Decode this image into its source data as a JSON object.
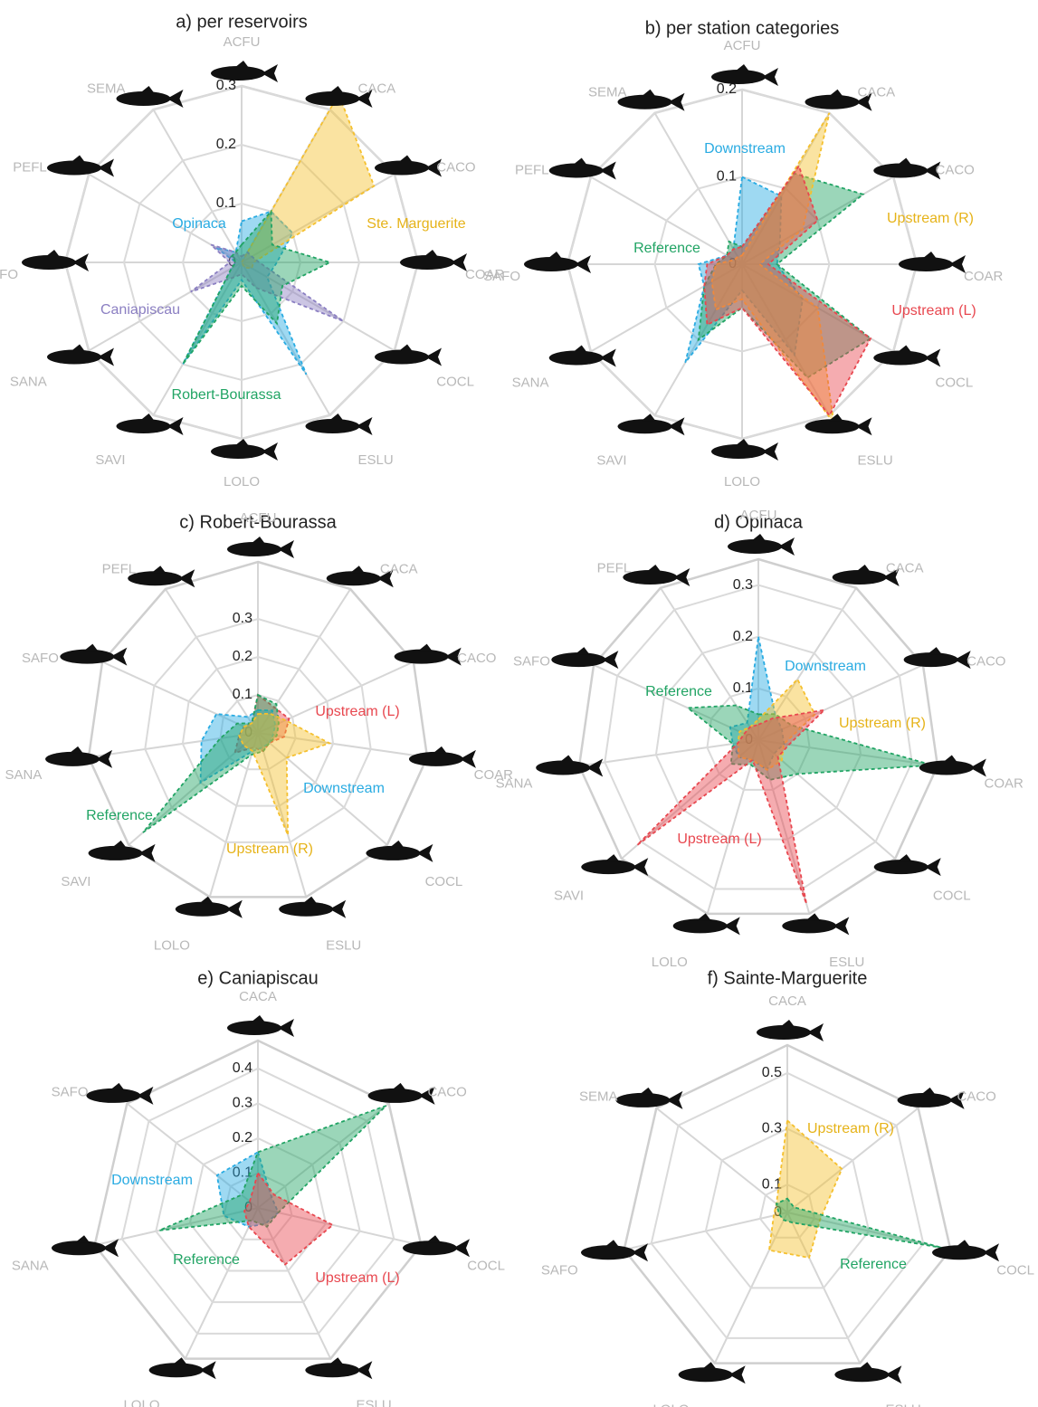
{
  "chart_data": [
    {
      "type": "radar",
      "title": "a) per reservoirs",
      "categories": [
        "ACFU",
        "CACA",
        "CACO",
        "COAR",
        "COCL",
        "ESLU",
        "LOLO",
        "SAVI",
        "SANA",
        "SAFO",
        "PEFL",
        "SEMA"
      ],
      "ylim": [
        0,
        0.3
      ],
      "yticks": [
        0,
        0.1,
        0.2,
        0.3
      ],
      "series": [
        {
          "name": "Opinaca",
          "color": "#29abe2",
          "values": [
            0.07,
            0.1,
            0.1,
            0.06,
            0.05,
            0.22,
            0.03,
            0.2,
            0.02,
            0.01,
            0.05,
            0.02
          ]
        },
        {
          "name": "Ste. Marguerite",
          "color": "#f5c02e",
          "values": [
            0,
            0.33,
            0.26,
            0.02,
            0.02,
            0.01,
            0,
            0,
            0,
            0,
            0,
            0
          ]
        },
        {
          "name": "Caniapiscau",
          "color": "#8b7fc2",
          "values": [
            0.01,
            0.02,
            0.02,
            0.03,
            0.2,
            0.05,
            0.02,
            0.03,
            0.1,
            0.02,
            0.06,
            0.02
          ]
        },
        {
          "name": "Robert-Bourassa",
          "color": "#21a464",
          "values": [
            0.03,
            0.1,
            0.06,
            0.15,
            0.08,
            0.12,
            0.04,
            0.2,
            0.02,
            0.01,
            0.02,
            0.02
          ]
        }
      ]
    },
    {
      "type": "radar",
      "title": "b) per station categories",
      "categories": [
        "ACFU",
        "CACA",
        "CACO",
        "COAR",
        "COCL",
        "ESLU",
        "LOLO",
        "SAVI",
        "SANA",
        "SAFO",
        "PEFL",
        "SEMA"
      ],
      "ylim": [
        0,
        0.2
      ],
      "yticks": [
        0,
        0.1,
        0.2
      ],
      "series": [
        {
          "name": "Downstream",
          "color": "#29abe2",
          "values": [
            0.1,
            0.09,
            0.05,
            0.04,
            0.08,
            0.12,
            0.03,
            0.13,
            0.05,
            0.05,
            0.02,
            0.02
          ]
        },
        {
          "name": "Reference",
          "color": "#21a464",
          "values": [
            0.02,
            0.12,
            0.16,
            0.04,
            0.17,
            0.15,
            0.05,
            0.1,
            0.05,
            0.03,
            0.02,
            0.03
          ]
        },
        {
          "name": "Upstream (R)",
          "color": "#f5c02e",
          "values": [
            0.01,
            0.2,
            0.08,
            0.02,
            0.1,
            0.21,
            0.04,
            0.06,
            0.04,
            0.03,
            0.01,
            0.01
          ]
        },
        {
          "name": "Upstream (L)",
          "color": "#e8474f",
          "values": [
            0.02,
            0.13,
            0.1,
            0.03,
            0.17,
            0.2,
            0.05,
            0.08,
            0.05,
            0.04,
            0.02,
            0.02
          ]
        }
      ]
    },
    {
      "type": "radar",
      "title": "c) Robert-Bourassa",
      "categories": [
        "ACFU",
        "CACA",
        "CACO",
        "COAR",
        "COCL",
        "ESLU",
        "LOLO",
        "SAVI",
        "SANA",
        "SAFO",
        "PEFL"
      ],
      "ylim": [
        0,
        0.45
      ],
      "yticks": [
        0,
        0.1,
        0.2,
        0.3
      ],
      "series": [
        {
          "name": "Upstream (L)",
          "color": "#e8474f",
          "values": [
            0.1,
            0.08,
            0.09,
            0.07,
            0.04,
            0.05,
            0.04,
            0.08,
            0.05,
            0.04,
            0.03
          ]
        },
        {
          "name": "Downstream",
          "color": "#29abe2",
          "values": [
            0.06,
            0.07,
            0.05,
            0.04,
            0.04,
            0.04,
            0.05,
            0.2,
            0.15,
            0.12,
            0.05
          ]
        },
        {
          "name": "Reference",
          "color": "#21a464",
          "values": [
            0.1,
            0.09,
            0.06,
            0.05,
            0.04,
            0.05,
            0.06,
            0.4,
            0.1,
            0.06,
            0.03
          ]
        },
        {
          "name": "Upstream (R)",
          "color": "#f5c02e",
          "values": [
            0.05,
            0.06,
            0.08,
            0.19,
            0.1,
            0.28,
            0.05,
            0.05,
            0.05,
            0.04,
            0.03
          ]
        }
      ]
    },
    {
      "type": "radar",
      "title": "d) Opinaca",
      "categories": [
        "ACFU",
        "CACA",
        "CACO",
        "COAR",
        "COCL",
        "ESLU",
        "LOLO",
        "SAVI",
        "SANA",
        "SAFO",
        "PEFL"
      ],
      "ylim": [
        0,
        0.35
      ],
      "yticks": [
        0,
        0.1,
        0.2,
        0.3
      ],
      "series": [
        {
          "name": "Downstream",
          "color": "#29abe2",
          "values": [
            0.2,
            0.06,
            0.05,
            0.05,
            0.04,
            0.06,
            0.04,
            0.05,
            0.05,
            0.06,
            0.04
          ]
        },
        {
          "name": "Reference",
          "color": "#21a464",
          "values": [
            0.05,
            0.06,
            0.07,
            0.34,
            0.1,
            0.08,
            0.05,
            0.07,
            0.05,
            0.15,
            0.08
          ]
        },
        {
          "name": "Upstream (R)",
          "color": "#f5c02e",
          "values": [
            0.04,
            0.14,
            0.12,
            0.05,
            0.06,
            0.06,
            0.04,
            0.05,
            0.04,
            0.04,
            0.03
          ]
        },
        {
          "name": "Upstream (L)",
          "color": "#e8474f",
          "values": [
            0.03,
            0.05,
            0.14,
            0.06,
            0.05,
            0.33,
            0.04,
            0.31,
            0.04,
            0.03,
            0.03
          ]
        }
      ]
    },
    {
      "type": "radar",
      "title": "e) Caniapiscau",
      "categories": [
        "CACA",
        "CACO",
        "COCL",
        "ESLU",
        "LOLO",
        "SANA",
        "SAFO"
      ],
      "ylim": [
        0,
        0.48
      ],
      "yticks": [
        0,
        0.1,
        0.2,
        0.3,
        0.4
      ],
      "series": [
        {
          "name": "Downstream",
          "color": "#29abe2",
          "values": [
            0.16,
            0.05,
            0.06,
            0.05,
            0.06,
            0.1,
            0.15
          ]
        },
        {
          "name": "Reference",
          "color": "#21a464",
          "values": [
            0.16,
            0.47,
            0.06,
            0.06,
            0.04,
            0.29,
            0.06
          ]
        },
        {
          "name": "Upstream (L)",
          "color": "#e8474f",
          "values": [
            0.1,
            0.06,
            0.22,
            0.18,
            0.06,
            0.04,
            0.03
          ]
        }
      ]
    },
    {
      "type": "radar",
      "title": "f) Sainte-Marguerite",
      "categories": [
        "CACA",
        "CACO",
        "COCL",
        "ESLU",
        "LOLO",
        "SAFO",
        "SEMA"
      ],
      "ylim": [
        0,
        0.6
      ],
      "yticks": [
        0,
        0.1,
        0.3,
        0.5
      ],
      "series": [
        {
          "name": "Upstream (R)",
          "color": "#f5c02e",
          "values": [
            0.33,
            0.25,
            0.12,
            0.18,
            0.15,
            0.05,
            0.05
          ]
        },
        {
          "name": "Reference",
          "color": "#21a464",
          "values": [
            0.05,
            0.03,
            0.57,
            0.04,
            0.03,
            0.03,
            0.05
          ]
        }
      ]
    }
  ]
}
